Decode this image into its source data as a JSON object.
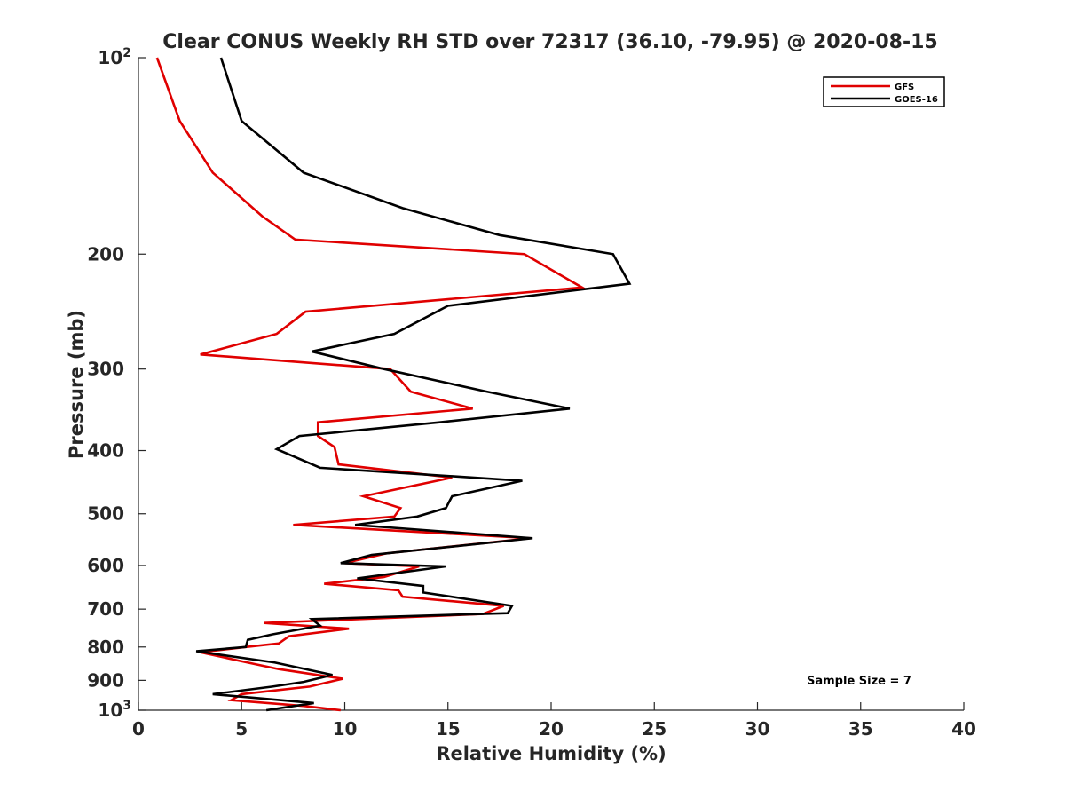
{
  "chart_data": {
    "type": "line",
    "title": "Clear CONUS Weekly RH STD over 72317 (36.10, -79.95) @ 2020-08-15",
    "xlabel": "Relative Humidity (%)",
    "ylabel": "Pressure (mb)",
    "xlim": [
      0,
      40
    ],
    "ylim": [
      100,
      1000
    ],
    "y_scale": "log",
    "y_reversed": true,
    "grid": false,
    "legend_position": "top-right",
    "x_ticks": [
      0,
      5,
      10,
      15,
      20,
      25,
      30,
      35,
      40
    ],
    "y_ticks": [
      {
        "value": 100,
        "label": "10",
        "exp": "2"
      },
      {
        "value": 200,
        "label": "200"
      },
      {
        "value": 300,
        "label": "300"
      },
      {
        "value": 400,
        "label": "400"
      },
      {
        "value": 500,
        "label": "500"
      },
      {
        "value": 600,
        "label": "600"
      },
      {
        "value": 700,
        "label": "700"
      },
      {
        "value": 800,
        "label": "800"
      },
      {
        "value": 900,
        "label": "900"
      },
      {
        "value": 1000,
        "label": "10",
        "exp": "3"
      }
    ],
    "annotation": "Sample Size = 7",
    "series": [
      {
        "name": "GFS",
        "color": "#e00000",
        "points": [
          [
            0.9,
            100
          ],
          [
            2.0,
            125
          ],
          [
            3.6,
            150
          ],
          [
            6.0,
            175
          ],
          [
            7.6,
            190
          ],
          [
            18.7,
            200
          ],
          [
            21.5,
            225
          ],
          [
            8.1,
            245
          ],
          [
            6.7,
            265
          ],
          [
            3.0,
            285
          ],
          [
            12.2,
            300
          ],
          [
            13.2,
            325
          ],
          [
            16.2,
            345
          ],
          [
            8.7,
            362
          ],
          [
            8.7,
            380
          ],
          [
            9.5,
            395
          ],
          [
            9.7,
            420
          ],
          [
            15.2,
            440
          ],
          [
            10.9,
            470
          ],
          [
            12.7,
            490
          ],
          [
            12.4,
            505
          ],
          [
            7.5,
            520
          ],
          [
            19.0,
            545
          ],
          [
            12.0,
            575
          ],
          [
            10.0,
            595
          ],
          [
            13.6,
            602
          ],
          [
            11.9,
            625
          ],
          [
            9.0,
            640
          ],
          [
            12.6,
            655
          ],
          [
            12.8,
            670
          ],
          [
            17.7,
            692
          ],
          [
            16.7,
            712
          ],
          [
            6.1,
            735
          ],
          [
            10.2,
            750
          ],
          [
            7.3,
            770
          ],
          [
            6.8,
            790
          ],
          [
            5.2,
            800
          ],
          [
            3.0,
            815
          ],
          [
            4.9,
            840
          ],
          [
            6.8,
            865
          ],
          [
            9.9,
            895
          ],
          [
            8.3,
            920
          ],
          [
            5.0,
            945
          ],
          [
            4.5,
            965
          ],
          [
            8.0,
            985
          ],
          [
            9.8,
            1000
          ]
        ]
      },
      {
        "name": "GOES-16",
        "color": "#000000",
        "points": [
          [
            4.0,
            100
          ],
          [
            5.0,
            125
          ],
          [
            8.0,
            150
          ],
          [
            12.8,
            170
          ],
          [
            17.5,
            187
          ],
          [
            23.0,
            200
          ],
          [
            23.8,
            222
          ],
          [
            15.0,
            240
          ],
          [
            12.4,
            265
          ],
          [
            8.4,
            282
          ],
          [
            11.9,
            300
          ],
          [
            16.9,
            325
          ],
          [
            20.9,
            345
          ],
          [
            14.6,
            362
          ],
          [
            7.8,
            380
          ],
          [
            6.7,
            398
          ],
          [
            8.8,
            425
          ],
          [
            18.6,
            445
          ],
          [
            15.2,
            470
          ],
          [
            14.9,
            490
          ],
          [
            13.5,
            505
          ],
          [
            10.5,
            520
          ],
          [
            19.1,
            545
          ],
          [
            11.3,
            578
          ],
          [
            9.8,
            595
          ],
          [
            14.9,
            602
          ],
          [
            10.6,
            628
          ],
          [
            13.8,
            645
          ],
          [
            13.8,
            660
          ],
          [
            18.1,
            692
          ],
          [
            17.9,
            710
          ],
          [
            8.4,
            725
          ],
          [
            8.8,
            742
          ],
          [
            6.5,
            765
          ],
          [
            5.3,
            780
          ],
          [
            5.2,
            800
          ],
          [
            2.8,
            812
          ],
          [
            6.6,
            845
          ],
          [
            9.4,
            883
          ],
          [
            8.0,
            905
          ],
          [
            6.5,
            920
          ],
          [
            3.6,
            945
          ],
          [
            8.5,
            975
          ],
          [
            6.2,
            1000
          ]
        ]
      }
    ]
  }
}
